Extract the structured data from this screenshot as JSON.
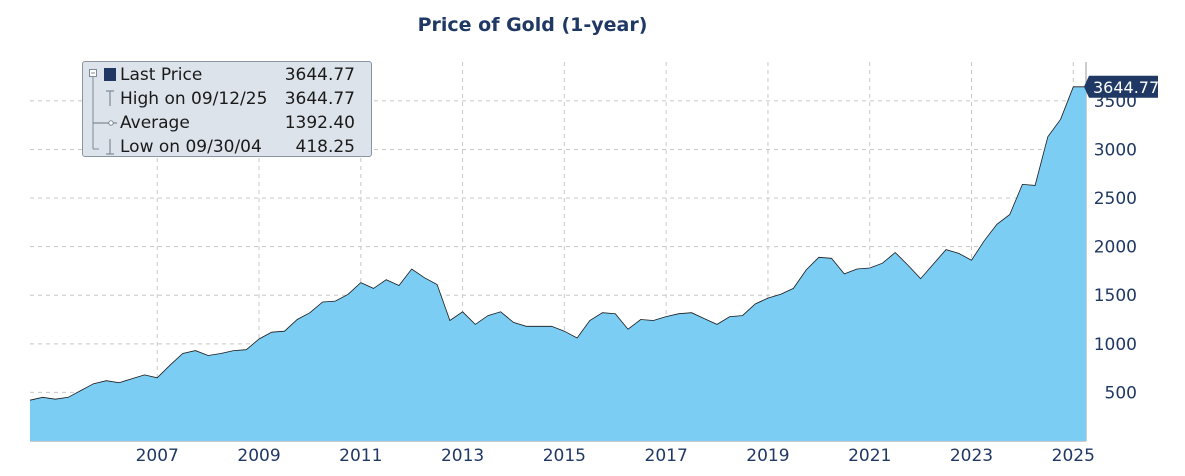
{
  "chart_data": {
    "type": "area",
    "title": "Price of Gold (1-year)",
    "xlabel": "",
    "ylabel": "",
    "x_start": 2005.0,
    "x_end": 2025.75,
    "ylim": [
      0,
      3900
    ],
    "x_ticks": [
      "2007",
      "2009",
      "2011",
      "2013",
      "2015",
      "2017",
      "2019",
      "2021",
      "2023",
      "2025"
    ],
    "y_ticks": [
      500,
      1000,
      1500,
      2000,
      2500,
      3000,
      3500
    ],
    "grid": true,
    "fill_color": "#7ccdf4",
    "line_color": "#1a1a1a",
    "last_price_label": "3644.77",
    "series": [
      {
        "x": [
          2005.0,
          2005.25,
          2005.5,
          2005.75,
          2006.0,
          2006.25,
          2006.5,
          2006.75,
          2007.0,
          2007.25,
          2007.5,
          2007.75,
          2008.0,
          2008.25,
          2008.5,
          2008.75,
          2009.0,
          2009.25,
          2009.5,
          2009.75,
          2010.0,
          2010.25,
          2010.5,
          2010.75,
          2011.0,
          2011.25,
          2011.5,
          2011.75,
          2012.0,
          2012.25,
          2012.5,
          2012.75,
          2013.0,
          2013.25,
          2013.5,
          2013.75,
          2014.0,
          2014.25,
          2014.5,
          2014.75,
          2015.0,
          2015.25,
          2015.5,
          2015.75,
          2016.0,
          2016.25,
          2016.5,
          2016.75,
          2017.0,
          2017.25,
          2017.5,
          2017.75,
          2018.0,
          2018.25,
          2018.5,
          2018.75,
          2019.0,
          2019.25,
          2019.5,
          2019.75,
          2020.0,
          2020.25,
          2020.5,
          2020.75,
          2021.0,
          2021.25,
          2021.5,
          2021.75,
          2022.0,
          2022.25,
          2022.5,
          2022.75,
          2023.0,
          2023.25,
          2023.5,
          2023.75,
          2024.0,
          2024.25,
          2024.5,
          2024.75,
          2025.0,
          2025.25,
          2025.5,
          2025.75
        ],
        "values": [
          420,
          450,
          430,
          450,
          520,
          590,
          620,
          600,
          640,
          680,
          650,
          780,
          900,
          930,
          880,
          900,
          930,
          940,
          1050,
          1120,
          1130,
          1250,
          1320,
          1430,
          1440,
          1510,
          1630,
          1570,
          1660,
          1600,
          1770,
          1680,
          1610,
          1240,
          1330,
          1200,
          1290,
          1330,
          1220,
          1180,
          1180,
          1180,
          1130,
          1060,
          1240,
          1320,
          1310,
          1150,
          1250,
          1240,
          1280,
          1310,
          1320,
          1260,
          1200,
          1280,
          1290,
          1410,
          1470,
          1510,
          1570,
          1760,
          1890,
          1880,
          1720,
          1770,
          1780,
          1830,
          1940,
          1810,
          1670,
          1820,
          1970,
          1930,
          1860,
          2060,
          2230,
          2330,
          2640,
          2630,
          3130,
          3310,
          3644.77,
          3644.77
        ]
      }
    ]
  },
  "legend": {
    "items": [
      {
        "label": "Last Price",
        "value": "3644.77"
      },
      {
        "label": "High on 09/12/25",
        "value": "3644.77"
      },
      {
        "label": "Average",
        "value": "1392.40"
      },
      {
        "label": "Low on 09/30/04",
        "value": "418.25"
      }
    ],
    "collapse_icon": "minus-box-icon",
    "swatch_color": "#1f3864"
  }
}
